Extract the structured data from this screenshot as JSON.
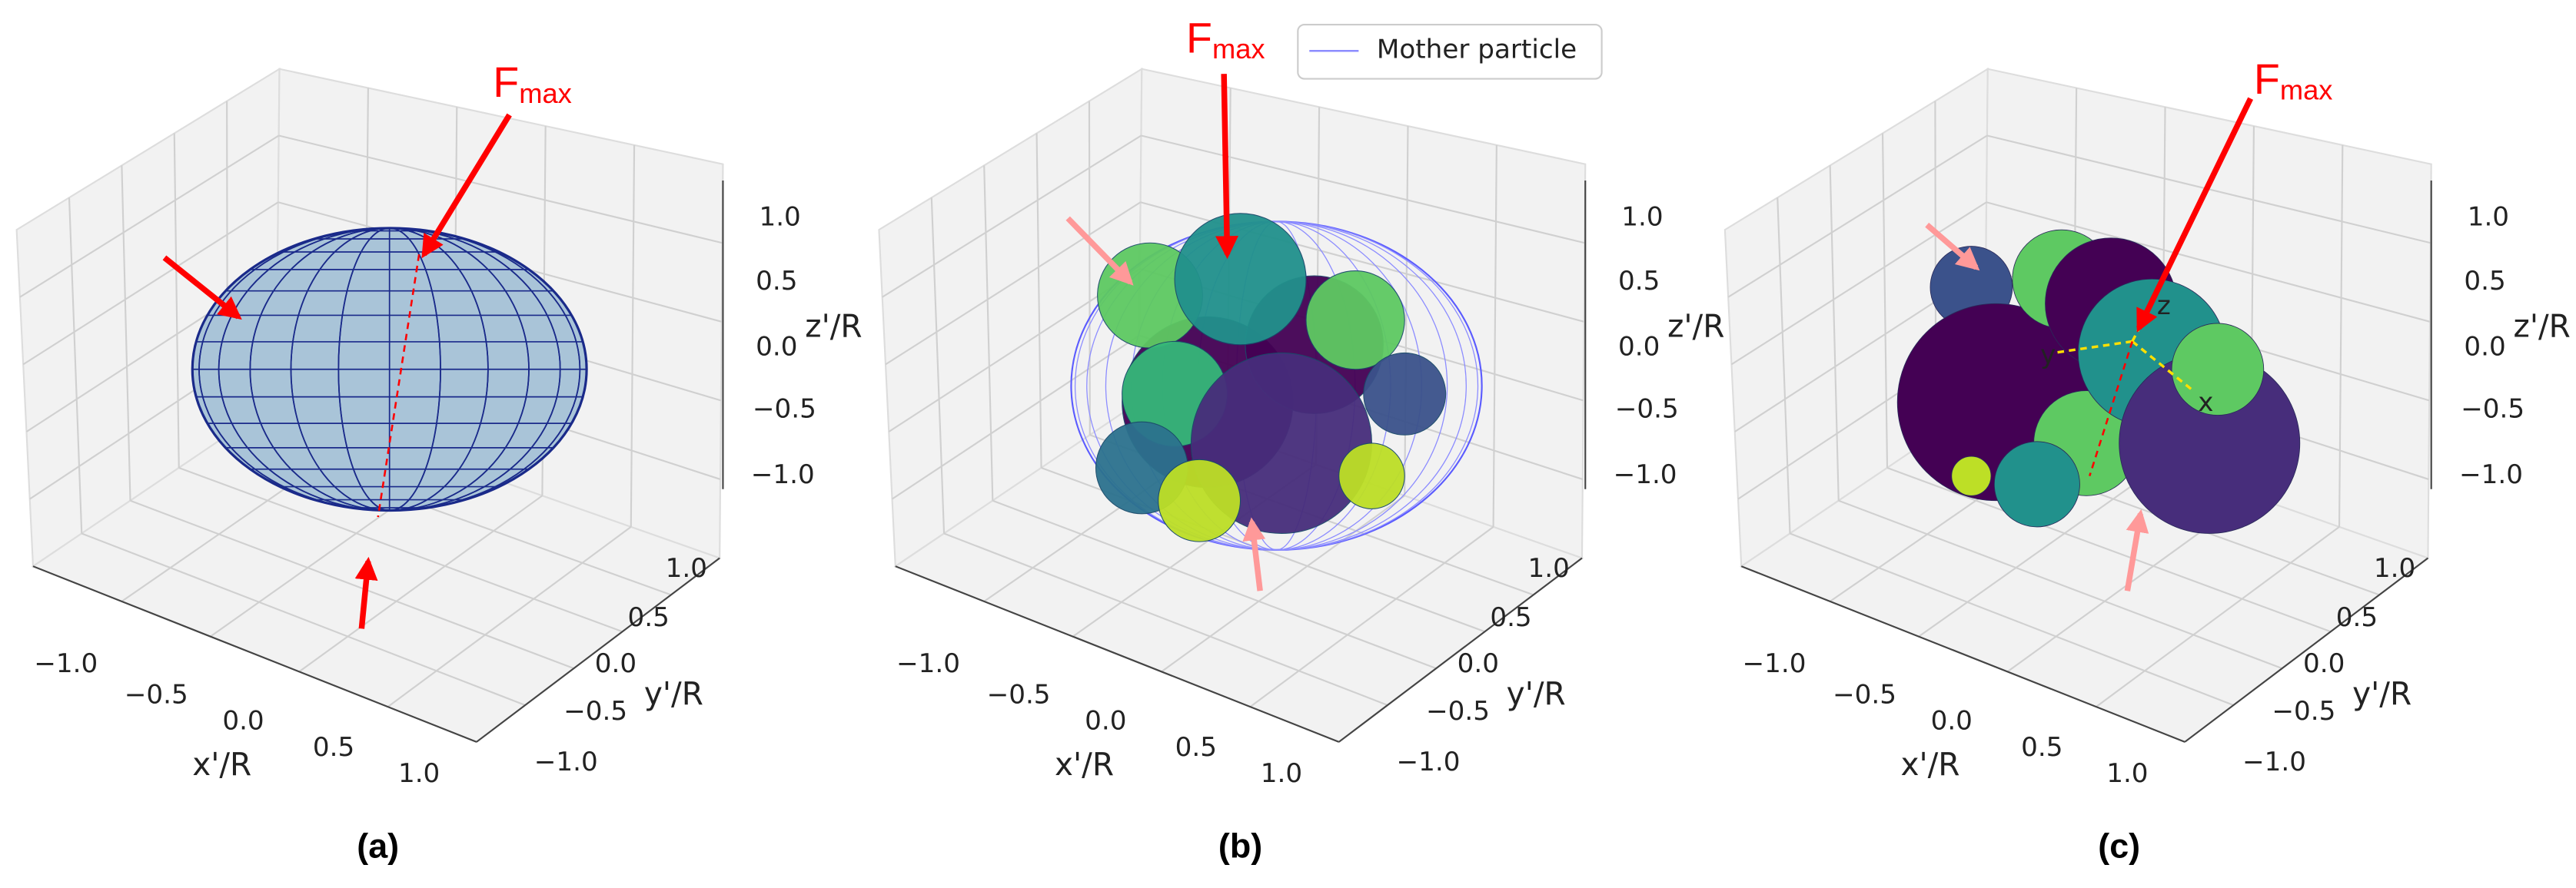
{
  "panels": [
    {
      "label": "(a)",
      "force_label": {
        "main": "F",
        "sub": "max"
      },
      "x_axis": {
        "label": "x'/R",
        "ticks": [
          "−1.0",
          "−0.5",
          "0.0",
          "0.5",
          "1.0"
        ]
      },
      "y_axis": {
        "label": "y'/R",
        "ticks": [
          "−1.0",
          "−0.5",
          "0.0",
          "0.5",
          "1.0"
        ]
      },
      "z_axis": {
        "label": "z'/R",
        "ticks": [
          "−1.0",
          "−0.5",
          "0.0",
          "0.5",
          "1.0"
        ]
      }
    },
    {
      "label": "(b)",
      "force_label": {
        "main": "F",
        "sub": "max"
      },
      "legend": "Mother particle",
      "x_axis": {
        "label": "x'/R",
        "ticks": [
          "−1.0",
          "−0.5",
          "0.0",
          "0.5",
          "1.0"
        ]
      },
      "y_axis": {
        "label": "y'/R",
        "ticks": [
          "−1.0",
          "−0.5",
          "0.0",
          "0.5",
          "1.0"
        ]
      },
      "z_axis": {
        "label": "z'/R",
        "ticks": [
          "−1.0",
          "−0.5",
          "0.0",
          "0.5",
          "1.0"
        ]
      }
    },
    {
      "label": "(c)",
      "force_label": {
        "main": "F",
        "sub": "max"
      },
      "body_axes": [
        "x",
        "y",
        "z"
      ],
      "x_axis": {
        "label": "x'/R",
        "ticks": [
          "−1.0",
          "−0.5",
          "0.0",
          "0.5",
          "1.0"
        ]
      },
      "y_axis": {
        "label": "y'/R",
        "ticks": [
          "−1.0",
          "−0.5",
          "0.0",
          "0.5",
          "1.0"
        ]
      },
      "z_axis": {
        "label": "z'/R",
        "ticks": [
          "−1.0",
          "−0.5",
          "0.0",
          "0.5",
          "1.0"
        ]
      }
    }
  ]
}
